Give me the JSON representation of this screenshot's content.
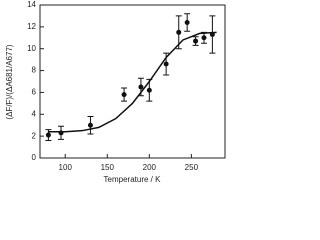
{
  "chart_data": {
    "type": "scatter",
    "x_label": "Temperature / K",
    "y_label": "(ΔF/F)/(ΔA681/A677)",
    "xlim": [
      70,
      290
    ],
    "xticks": [
      100,
      150,
      200,
      250
    ],
    "ylim": [
      0,
      14
    ],
    "yticks": [
      0,
      2,
      4,
      6,
      8,
      10,
      12,
      14
    ],
    "color": "#111111",
    "points": {
      "x": [
        80,
        95,
        130,
        170,
        190,
        200,
        220,
        235,
        245,
        255,
        265,
        275
      ],
      "y": [
        2.1,
        2.3,
        3.0,
        5.8,
        6.5,
        6.2,
        8.6,
        11.5,
        12.4,
        10.7,
        11.0,
        11.3
      ],
      "errors": [
        0.5,
        0.6,
        0.8,
        0.6,
        0.8,
        1.0,
        1.0,
        1.5,
        0.8,
        0.4,
        0.5,
        1.7
      ]
    },
    "fit": {
      "x": [
        80,
        100,
        120,
        140,
        160,
        180,
        200,
        220,
        240,
        260,
        280
      ],
      "y": [
        2.4,
        2.4,
        2.5,
        2.8,
        3.6,
        5.0,
        7.0,
        9.2,
        10.8,
        11.4,
        11.5
      ]
    }
  }
}
